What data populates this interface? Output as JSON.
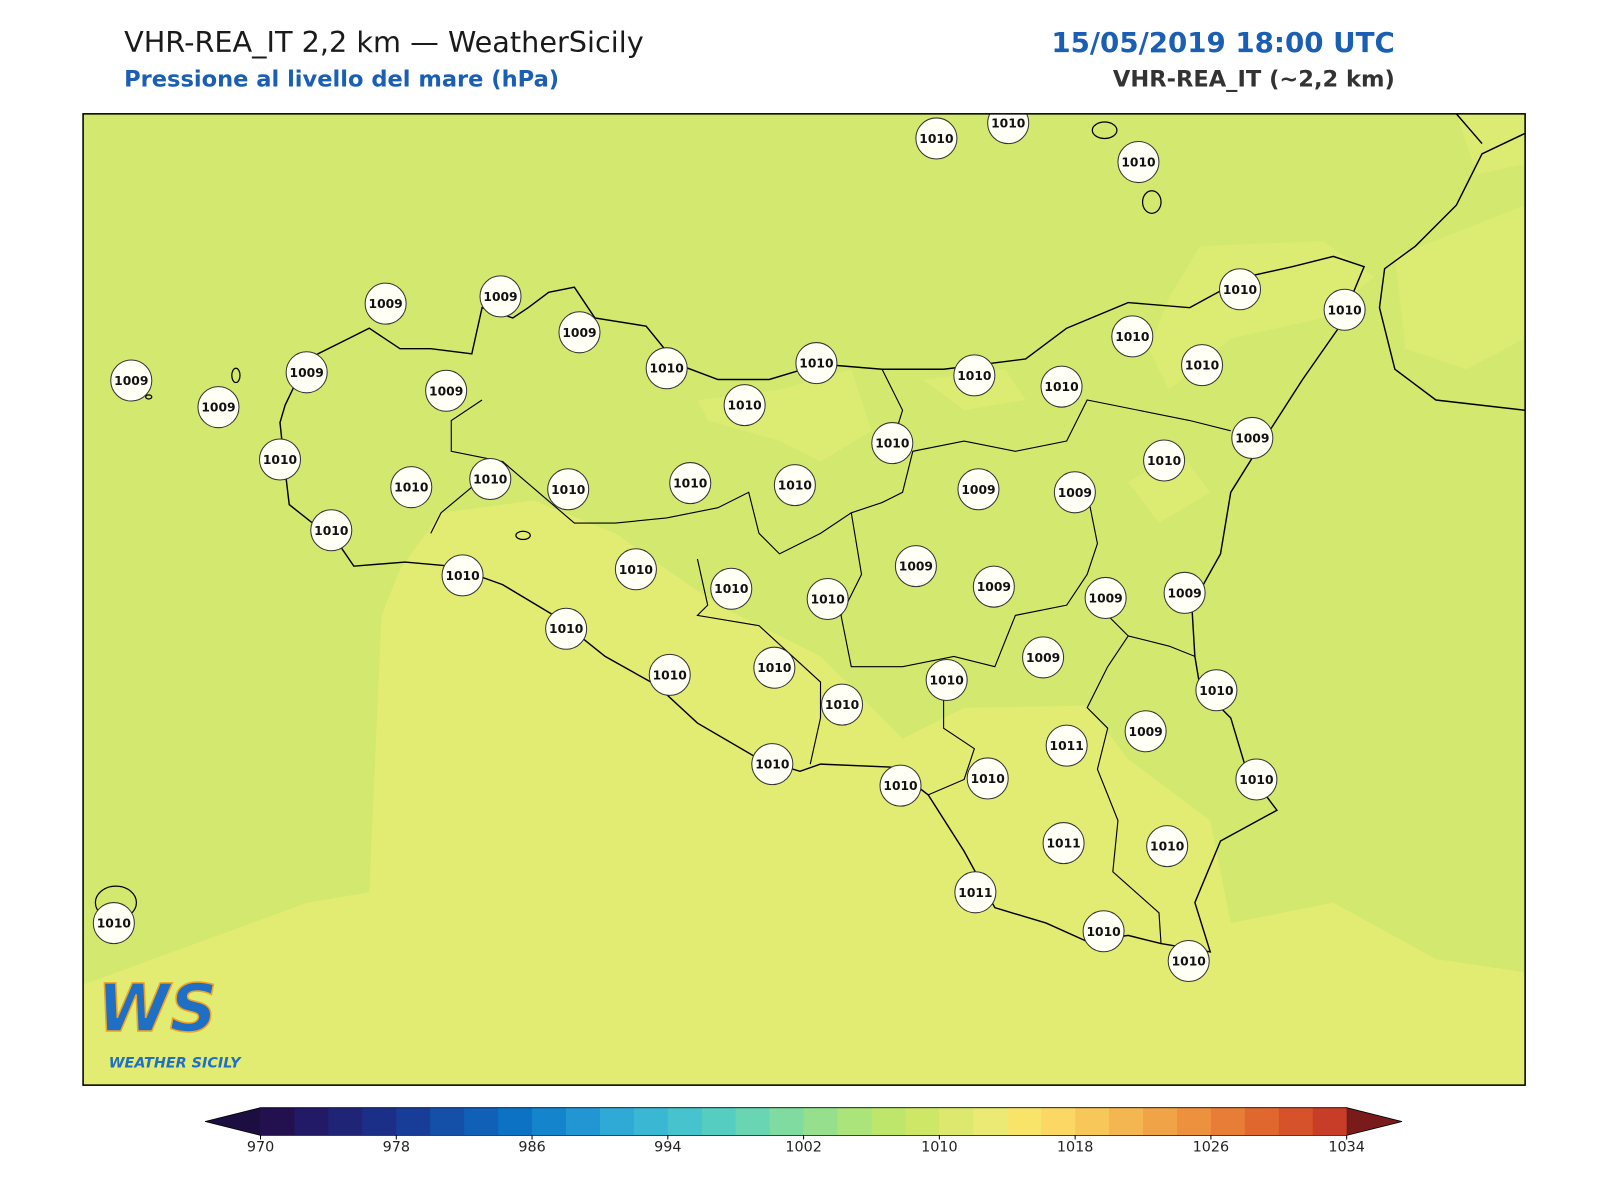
{
  "header": {
    "title": "VHR-REA_IT 2,2 km — WeatherSicily",
    "subtitle": "Pressione al livello del mare (hPa)",
    "datetime": "15/05/2019 18:00 UTC",
    "model": "VHR-REA_IT (~2,2 km)"
  },
  "stations": [
    1010,
    1010,
    1010,
    1010,
    1010,
    1009,
    1009,
    1009,
    1009,
    1009,
    1009,
    1009,
    1010,
    1010,
    1010,
    1010,
    1010,
    1010,
    1010,
    1010,
    1010,
    1009,
    1010,
    1010,
    1010,
    1010,
    1010,
    1010,
    1009,
    1009,
    1010,
    1009,
    1010,
    1010,
    1010,
    1010,
    1009,
    1009,
    1009,
    1010,
    1009,
    1010,
    1010,
    1010,
    1010,
    1010,
    1011,
    1009,
    1010,
    1010,
    1010,
    1010,
    1011,
    1010,
    1011,
    1010,
    1010,
    1010
  ],
  "colorbar": {
    "ticks": [
      970,
      978,
      986,
      994,
      1002,
      1010,
      1018,
      1026,
      1034
    ],
    "colors": [
      "#23104f",
      "#221a66",
      "#1f2477",
      "#1c2f88",
      "#183d98",
      "#1450a8",
      "#1060b8",
      "#0c72c4",
      "#1484cc",
      "#2296d2",
      "#2fa9d6",
      "#3ab8d3",
      "#46c3cc",
      "#55cdc1",
      "#69d5b3",
      "#80dba1",
      "#96e08d",
      "#aae47a",
      "#bde66a",
      "#cee766",
      "#dde96e",
      "#eaea74",
      "#f9e46a",
      "#fbd763",
      "#f8c75a",
      "#f4b650",
      "#f1a447",
      "#ed913f",
      "#e87d37",
      "#e0682f",
      "#d6522a",
      "#c73d27"
    ],
    "under_color": "#1d0e42",
    "over_color": "#7a1b1b"
  },
  "logo": {
    "mark": "WS",
    "text": "WEATHER SICILY"
  }
}
